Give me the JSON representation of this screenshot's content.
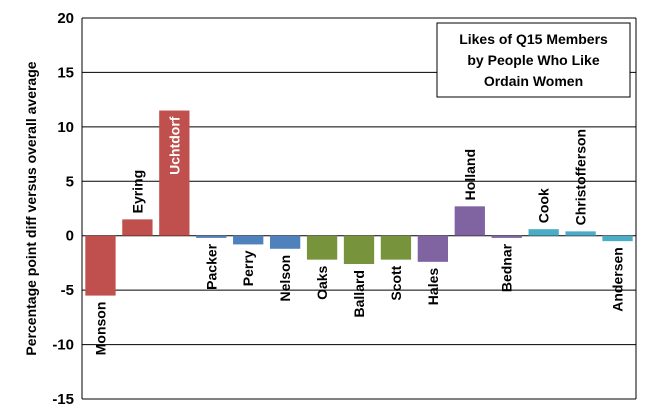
{
  "chart_data": {
    "type": "bar",
    "title": [
      "Likes of Q15 Members",
      "by People Who Like",
      "Ordain Women"
    ],
    "ylabel": "Percentage point diff versus overall average",
    "xlabel": "",
    "ylim": [
      -15,
      20
    ],
    "yticks": [
      20,
      15,
      10,
      5,
      0,
      -5,
      -10,
      -15
    ],
    "grid": true,
    "legend": "none",
    "categories": [
      "Monson",
      "Eyring",
      "Uchtdorf",
      "Packer",
      "Perry",
      "Nelson",
      "Oaks",
      "Ballard",
      "Scott",
      "Hales",
      "Holland",
      "Bednar",
      "Cook",
      "Christofferson",
      "Andersen"
    ],
    "values": [
      -5.5,
      1.5,
      11.5,
      -0.2,
      -0.8,
      -1.2,
      -2.2,
      -2.6,
      -2.2,
      -2.4,
      2.7,
      -0.2,
      0.6,
      0.4,
      -0.5
    ],
    "colors": [
      "#c0504d",
      "#c0504d",
      "#c0504d",
      "#4f81bd",
      "#4f81bd",
      "#4f81bd",
      "#77933c",
      "#77933c",
      "#77933c",
      "#8064a2",
      "#8064a2",
      "#8064a2",
      "#4bacc6",
      "#4bacc6",
      "#4bacc6"
    ],
    "label_inside": [
      "Uchtdorf"
    ]
  }
}
